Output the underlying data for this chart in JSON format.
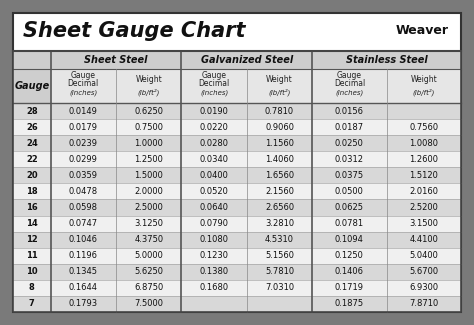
{
  "title": "Sheet Gauge Chart",
  "bg_outer": "#7a7a7a",
  "bg_white": "#ffffff",
  "bg_header_row": "#d4d4d4",
  "bg_subheader": "#e2e2e2",
  "bg_row_dark": "#d8d8d8",
  "bg_row_light": "#f0f0f0",
  "border_color": "#555555",
  "text_dark": "#111111",
  "gauges": [
    28,
    26,
    24,
    22,
    20,
    18,
    16,
    14,
    12,
    11,
    10,
    8,
    7
  ],
  "sheet_steel_dec": [
    "0.0149",
    "0.0179",
    "0.0239",
    "0.0299",
    "0.0359",
    "0.0478",
    "0.0598",
    "0.0747",
    "0.1046",
    "0.1196",
    "0.1345",
    "0.1644",
    "0.1793"
  ],
  "sheet_steel_wt": [
    "0.6250",
    "0.7500",
    "1.0000",
    "1.2500",
    "1.5000",
    "2.0000",
    "2.5000",
    "3.1250",
    "4.3750",
    "5.0000",
    "5.6250",
    "6.8750",
    "7.5000"
  ],
  "galv_dec": [
    "0.0190",
    "0.0220",
    "0.0280",
    "0.0340",
    "0.0400",
    "0.0520",
    "0.0640",
    "0.0790",
    "0.1080",
    "0.1230",
    "0.1380",
    "0.1680",
    ""
  ],
  "galv_wt": [
    "0.7810",
    "0.9060",
    "1.1560",
    "1.4060",
    "1.6560",
    "2.1560",
    "2.6560",
    "3.2810",
    "4.5310",
    "5.1560",
    "5.7810",
    "7.0310",
    ""
  ],
  "stainless_dec": [
    "0.0156",
    "0.0187",
    "0.0250",
    "0.0312",
    "0.0375",
    "0.0500",
    "0.0625",
    "0.0781",
    "0.1094",
    "0.1250",
    "0.1406",
    "0.1719",
    "0.1875"
  ],
  "stainless_wt": [
    "",
    "0.7560",
    "1.0080",
    "1.2600",
    "1.5120",
    "2.0160",
    "2.5200",
    "3.1500",
    "4.4100",
    "5.0400",
    "5.6700",
    "6.9300",
    "7.8710"
  ]
}
